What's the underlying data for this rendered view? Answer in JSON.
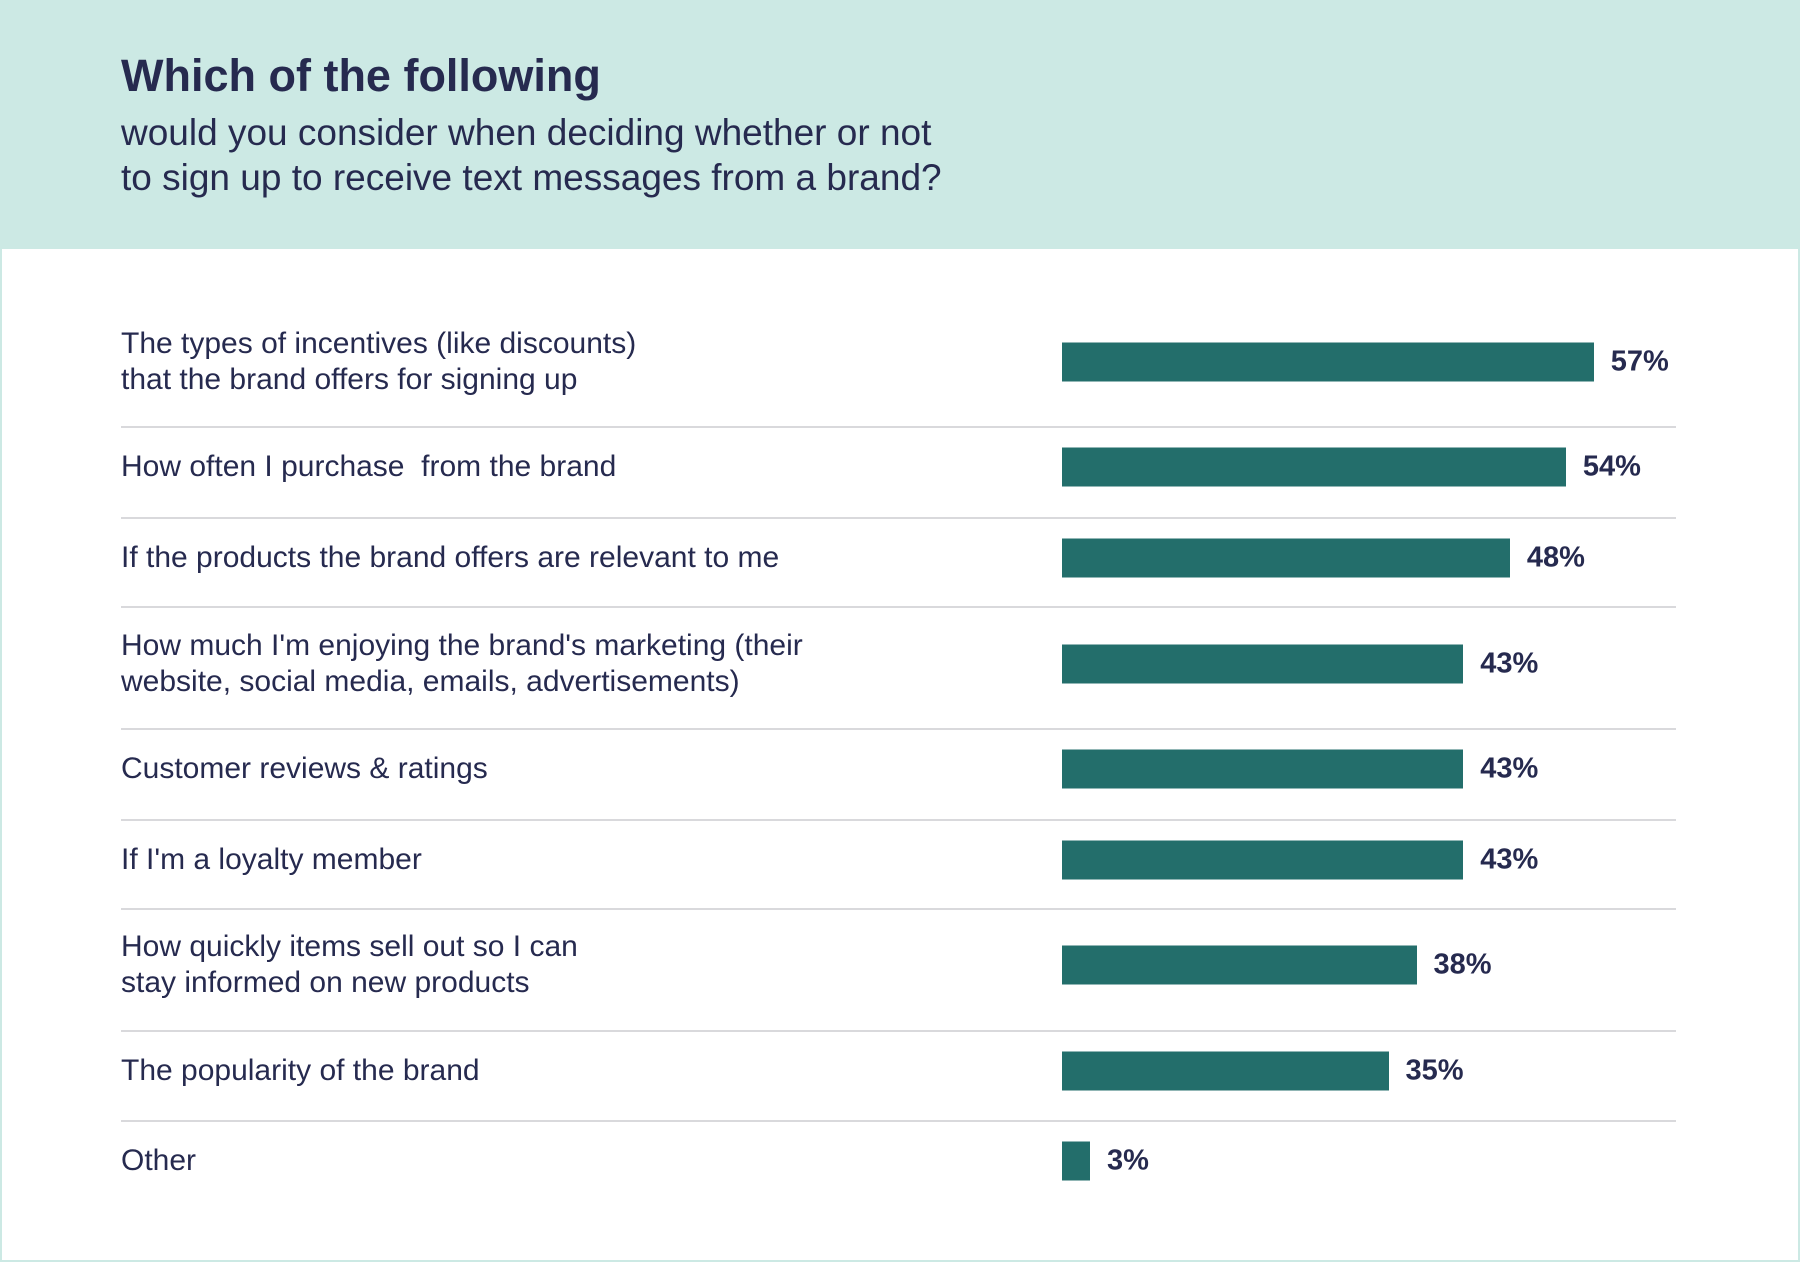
{
  "header": {
    "title": "Which of the following",
    "subtitle_line1": "would you consider when deciding whether or not",
    "subtitle_line2": "to sign up to receive text messages from a brand?"
  },
  "colors": {
    "header_bg": "#cce9e4",
    "bar": "#236e6b",
    "text": "#262a4f"
  },
  "chart_data": {
    "type": "bar",
    "orientation": "horizontal",
    "title": "Which of the following would you consider when deciding whether or not to sign up to receive text messages from a brand?",
    "categories": [
      "The types of incentives (like discounts)\nthat the brand offers for signing up",
      "How often I purchase  from the brand",
      "If the products the brand offers are relevant to me",
      "How much I'm enjoying the brand's marketing (their\nwebsite, social media, emails, advertisements)",
      "Customer reviews & ratings",
      "If I'm a loyalty member",
      "How quickly items sell out so I can\nstay informed on new products",
      "The popularity of the brand",
      "Other"
    ],
    "values": [
      57,
      54,
      48,
      43,
      43,
      43,
      38,
      35,
      3
    ],
    "value_labels": [
      "57%",
      "54%",
      "48%",
      "43%",
      "43%",
      "43%",
      "38%",
      "35%",
      "3%"
    ],
    "xlim": [
      0,
      57
    ],
    "grid": false,
    "legend": "none"
  }
}
